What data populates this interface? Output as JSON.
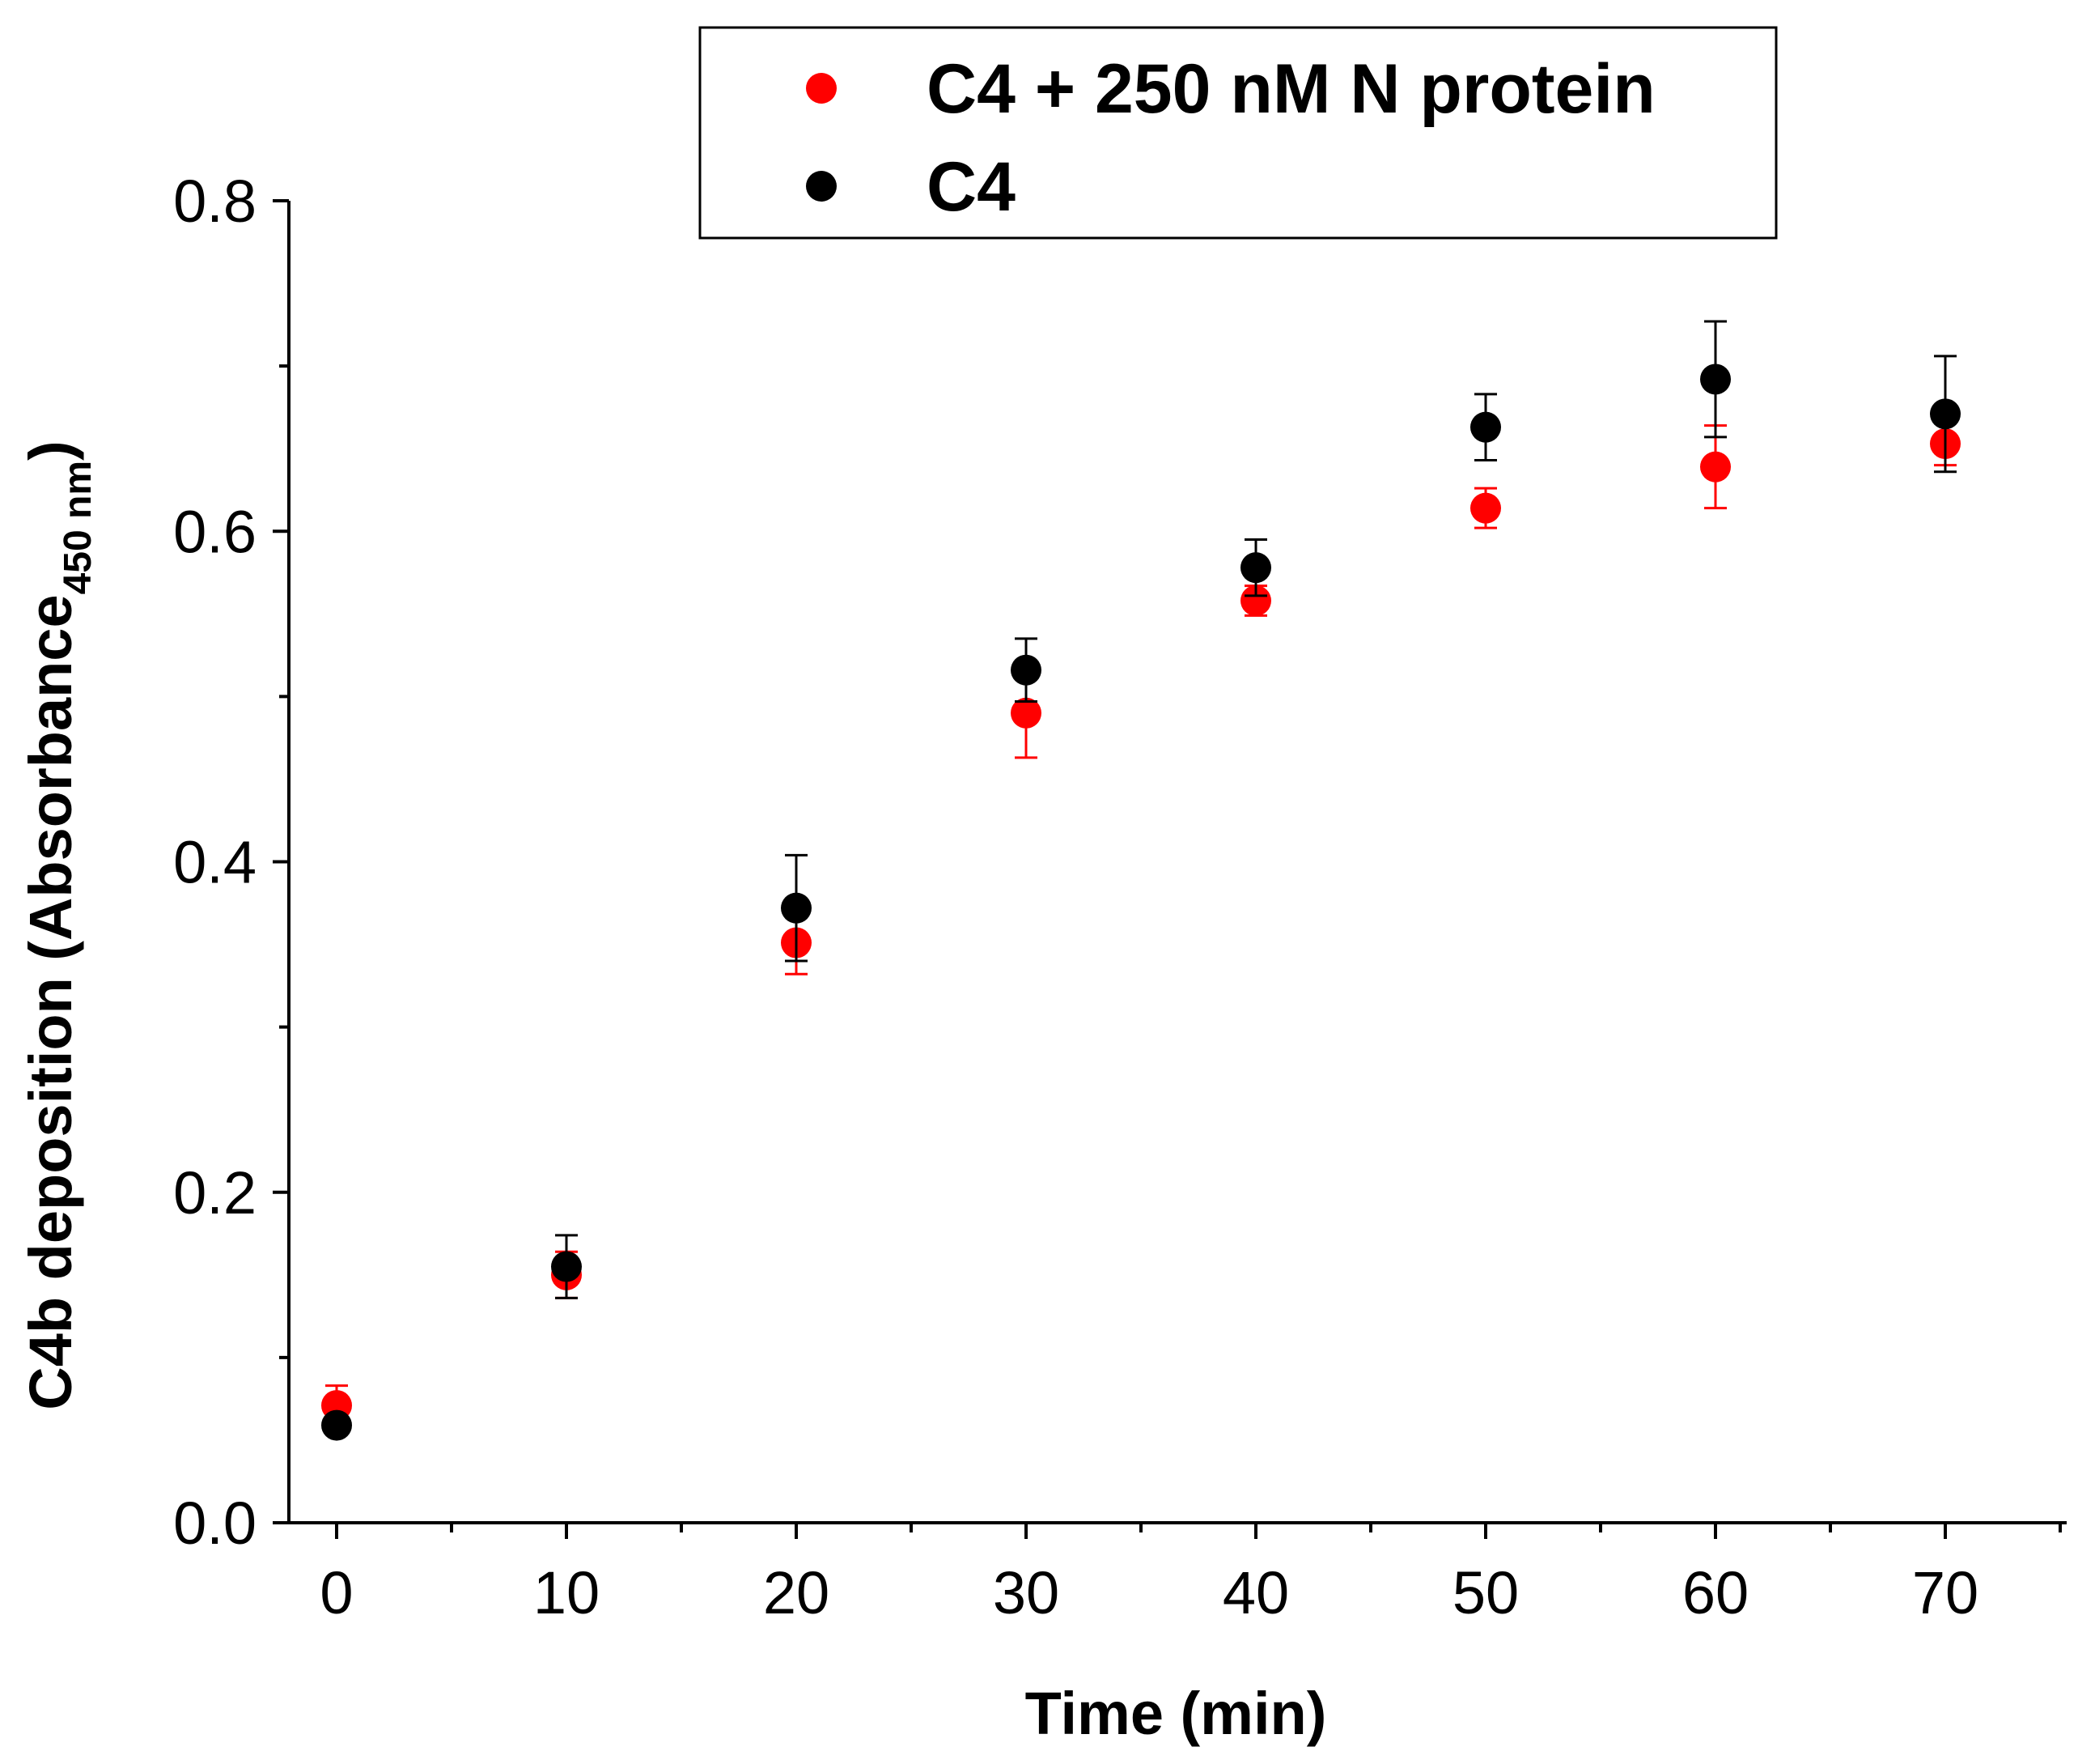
{
  "chart_data": {
    "type": "scatter",
    "title": "",
    "xlabel": "Time (min)",
    "ylabel": "C4b deposition (Absorbance",
    "ylabel_subscript": "450 nm",
    "ylabel_close": ")",
    "xlim": [
      -2,
      75
    ],
    "ylim": [
      0.0,
      0.8
    ],
    "x_major_ticks": [
      0,
      10,
      20,
      30,
      40,
      50,
      60,
      70
    ],
    "x_tick_labels": [
      "0",
      "10",
      "20",
      "30",
      "40",
      "50",
      "60",
      "70"
    ],
    "x_minor_ticks": [
      5,
      15,
      25,
      35,
      45,
      55,
      65,
      75
    ],
    "y_major_ticks": [
      0.0,
      0.2,
      0.4,
      0.6,
      0.8
    ],
    "y_tick_labels": [
      "0.0",
      "0.2",
      "0.4",
      "0.6",
      "0.8"
    ],
    "y_minor_ticks": [
      0.1,
      0.3,
      0.5,
      0.7
    ],
    "grid": false,
    "legend_position": "top-right",
    "series": [
      {
        "name": "C4 + 250 nM N protein",
        "color": "#ff0000",
        "x": [
          0,
          10,
          20,
          30,
          40,
          50,
          60,
          70
        ],
        "y": [
          0.071,
          0.15,
          0.351,
          0.49,
          0.558,
          0.614,
          0.639,
          0.653
        ],
        "yerr": [
          0.012,
          0.014,
          0.019,
          0.027,
          0.009,
          0.012,
          0.025,
          0.013
        ]
      },
      {
        "name": "C4",
        "color": "#000000",
        "x": [
          0,
          10,
          20,
          30,
          40,
          50,
          60,
          70
        ],
        "y": [
          0.059,
          0.155,
          0.372,
          0.516,
          0.578,
          0.663,
          0.692,
          0.671
        ],
        "yerr": [
          0.0,
          0.019,
          0.032,
          0.019,
          0.017,
          0.02,
          0.035,
          0.035
        ]
      }
    ]
  }
}
